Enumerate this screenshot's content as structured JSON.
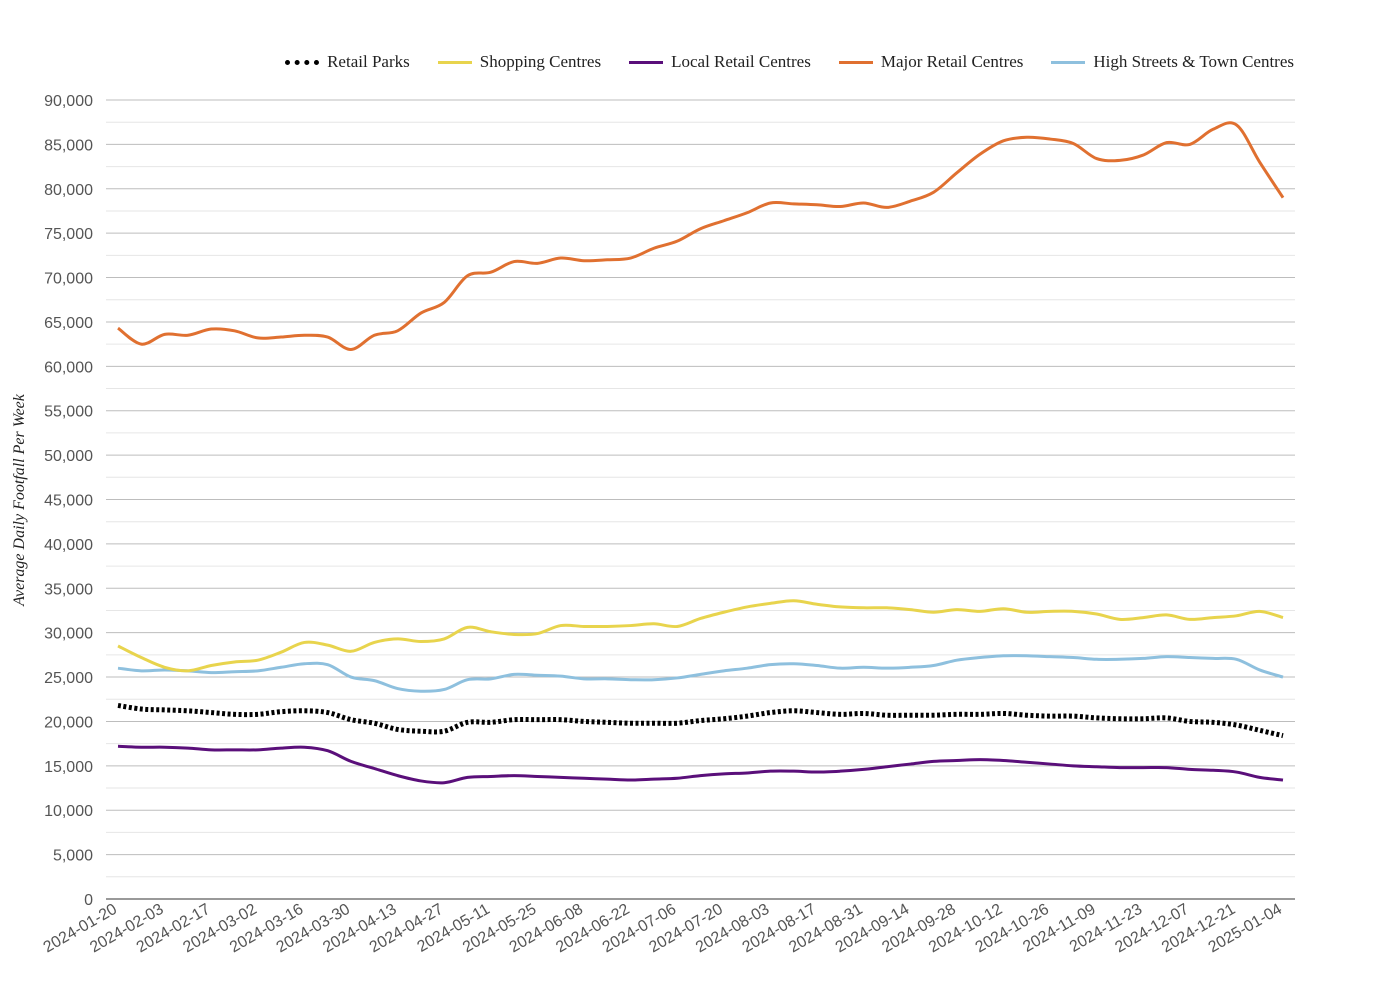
{
  "chart_data": {
    "type": "line",
    "title": "",
    "xlabel": "",
    "ylabel": "Average Daily Footfall Per Week",
    "ylim": [
      0,
      90000
    ],
    "grid": true,
    "legend_position": "top-right",
    "x_tick_labels": [
      "2024-01-20",
      "2024-02-03",
      "2024-02-17",
      "2024-03-02",
      "2024-03-16",
      "2024-03-30",
      "2024-04-13",
      "2024-04-27",
      "2024-05-11",
      "2024-05-25",
      "2024-06-08",
      "2024-06-22",
      "2024-07-06",
      "2024-07-20",
      "2024-08-03",
      "2024-08-17",
      "2024-08-31",
      "2024-09-14",
      "2024-09-28",
      "2024-10-12",
      "2024-10-26",
      "2024-11-09",
      "2024-11-23",
      "2024-12-07",
      "2024-12-21",
      "2025-01-04"
    ],
    "y_tick_labels": [
      "0",
      "5,000",
      "10,000",
      "15,000",
      "20,000",
      "25,000",
      "30,000",
      "35,000",
      "40,000",
      "45,000",
      "50,000",
      "55,000",
      "60,000",
      "65,000",
      "70,000",
      "75,000",
      "80,000",
      "85,000",
      "90,000"
    ],
    "x": [
      "2024-01-20",
      "2024-01-27",
      "2024-02-03",
      "2024-02-10",
      "2024-02-17",
      "2024-02-24",
      "2024-03-02",
      "2024-03-09",
      "2024-03-16",
      "2024-03-23",
      "2024-03-30",
      "2024-04-06",
      "2024-04-13",
      "2024-04-20",
      "2024-04-27",
      "2024-05-04",
      "2024-05-11",
      "2024-05-18",
      "2024-05-25",
      "2024-06-01",
      "2024-06-08",
      "2024-06-15",
      "2024-06-22",
      "2024-06-29",
      "2024-07-06",
      "2024-07-13",
      "2024-07-20",
      "2024-07-27",
      "2024-08-03",
      "2024-08-10",
      "2024-08-17",
      "2024-08-24",
      "2024-08-31",
      "2024-09-07",
      "2024-09-14",
      "2024-09-21",
      "2024-09-28",
      "2024-10-05",
      "2024-10-12",
      "2024-10-19",
      "2024-10-26",
      "2024-11-02",
      "2024-11-09",
      "2024-11-16",
      "2024-11-23",
      "2024-11-30",
      "2024-12-07",
      "2024-12-14",
      "2024-12-21",
      "2024-12-28",
      "2025-01-04"
    ],
    "series": [
      {
        "name": "Retail Parks",
        "color": "#000000",
        "style": "dotted",
        "values": [
          21800,
          21400,
          21300,
          21200,
          21000,
          20800,
          20800,
          21100,
          21200,
          21000,
          20200,
          19800,
          19100,
          18900,
          18900,
          19900,
          19900,
          20200,
          20200,
          20200,
          20000,
          19900,
          19800,
          19800,
          19800,
          20100,
          20300,
          20600,
          21000,
          21200,
          21000,
          20800,
          20900,
          20700,
          20700,
          20700,
          20800,
          20800,
          20900,
          20700,
          20600,
          20600,
          20400,
          20300,
          20300,
          20400,
          20000,
          19900,
          19600,
          19000,
          18400
        ]
      },
      {
        "name": "Shopping Centres",
        "color": "#e8d44d",
        "style": "solid",
        "values": [
          28500,
          27200,
          26100,
          25700,
          26300,
          26700,
          26900,
          27800,
          28900,
          28600,
          27900,
          28900,
          29300,
          29000,
          29300,
          30600,
          30100,
          29800,
          29900,
          30800,
          30700,
          30700,
          30800,
          31000,
          30700,
          31600,
          32300,
          32900,
          33300,
          33600,
          33200,
          32900,
          32800,
          32800,
          32600,
          32300,
          32600,
          32400,
          32700,
          32300,
          32400,
          32400,
          32100,
          31500,
          31700,
          32000,
          31500,
          31700,
          31900,
          32400,
          31700
        ]
      },
      {
        "name": "Local Retail Centres",
        "color": "#5a0f7a",
        "style": "solid",
        "values": [
          17200,
          17100,
          17100,
          17000,
          16800,
          16800,
          16800,
          17000,
          17100,
          16700,
          15500,
          14700,
          13900,
          13300,
          13100,
          13700,
          13800,
          13900,
          13800,
          13700,
          13600,
          13500,
          13400,
          13500,
          13600,
          13900,
          14100,
          14200,
          14400,
          14400,
          14300,
          14400,
          14600,
          14900,
          15200,
          15500,
          15600,
          15700,
          15600,
          15400,
          15200,
          15000,
          14900,
          14800,
          14800,
          14800,
          14600,
          14500,
          14300,
          13700,
          13400
        ]
      },
      {
        "name": "Major Retail Centres",
        "color": "#e07030",
        "style": "solid",
        "values": [
          64300,
          62500,
          63600,
          63500,
          64200,
          64000,
          63200,
          63300,
          63500,
          63300,
          61900,
          63500,
          64000,
          66000,
          67200,
          70200,
          70600,
          71800,
          71600,
          72200,
          71900,
          72000,
          72200,
          73300,
          74100,
          75500,
          76400,
          77300,
          78400,
          78300,
          78200,
          78000,
          78400,
          77900,
          78600,
          79600,
          81800,
          83900,
          85400,
          85800,
          85600,
          85100,
          83400,
          83200,
          83800,
          85200,
          85000,
          86700,
          87200,
          83000,
          79000
        ]
      },
      {
        "name": "High Streets & Town Centres",
        "color": "#8ec0de",
        "style": "solid",
        "values": [
          26000,
          25700,
          25800,
          25700,
          25500,
          25600,
          25700,
          26100,
          26500,
          26400,
          25000,
          24600,
          23700,
          23400,
          23600,
          24700,
          24800,
          25300,
          25200,
          25100,
          24800,
          24800,
          24700,
          24700,
          24900,
          25300,
          25700,
          26000,
          26400,
          26500,
          26300,
          26000,
          26100,
          26000,
          26100,
          26300,
          26900,
          27200,
          27400,
          27400,
          27300,
          27200,
          27000,
          27000,
          27100,
          27300,
          27200,
          27100,
          27000,
          25800,
          25000
        ]
      }
    ]
  }
}
